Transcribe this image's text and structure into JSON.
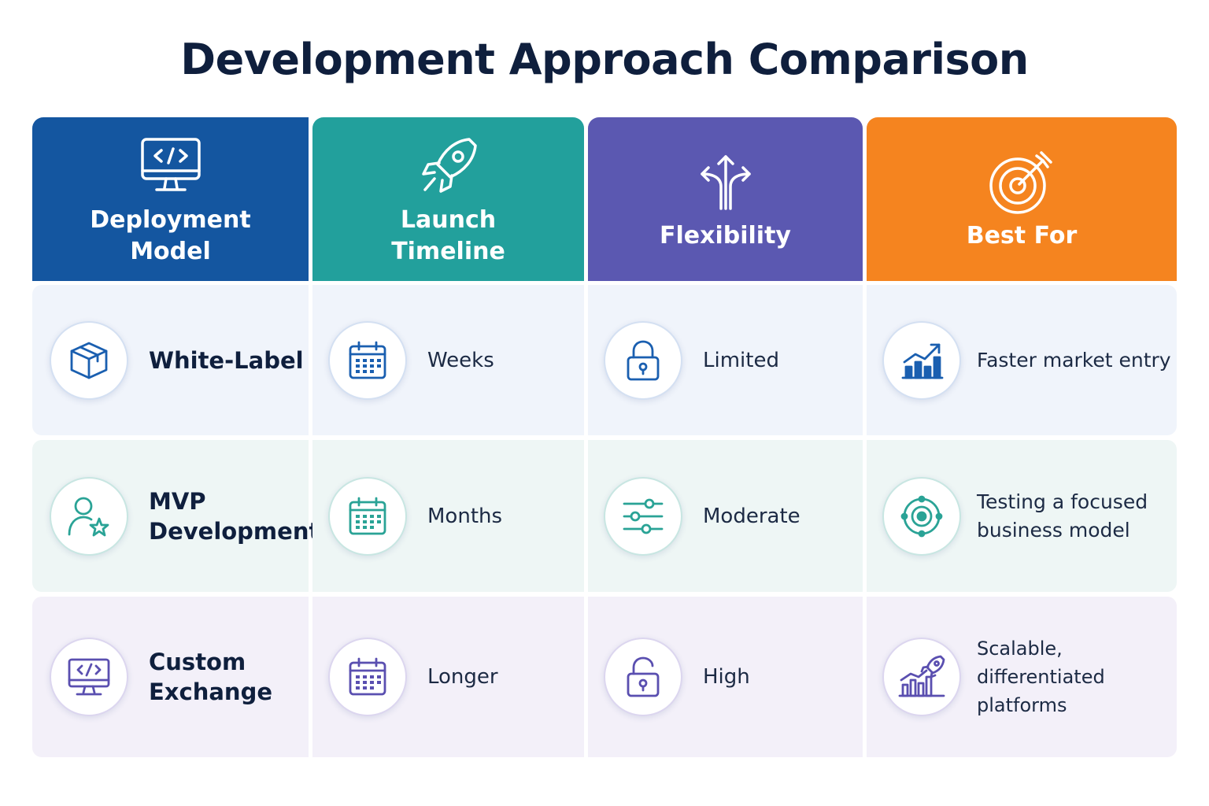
{
  "title": "Development Approach Comparison",
  "colors": {
    "header_deployment": "#1456a0",
    "header_launch": "#22a09c",
    "header_flexibility": "#5b58b1",
    "header_best_for": "#f5841f",
    "icon_blue": "#1a5fb0",
    "icon_teal": "#2aa396",
    "icon_purple": "#5a4fb0"
  },
  "headers": [
    {
      "label": "Deployment\nModel",
      "icon": "monitor-code-icon"
    },
    {
      "label": "Launch\nTimeline",
      "icon": "rocket-icon"
    },
    {
      "label": "Flexibility",
      "icon": "split-arrows-icon"
    },
    {
      "label": "Best For",
      "icon": "target-arrow-icon"
    }
  ],
  "rows": [
    {
      "model": {
        "label": "White-Label",
        "icon": "box-icon"
      },
      "timeline": {
        "label": "Weeks",
        "icon": "calendar-icon"
      },
      "flexibility": {
        "label": "Limited",
        "icon": "lock-icon"
      },
      "best_for": {
        "label": "Faster market entry",
        "icon": "chart-growth-icon"
      }
    },
    {
      "model": {
        "label": "MVP\nDevelopment",
        "icon": "user-star-icon"
      },
      "timeline": {
        "label": "Months",
        "icon": "calendar-icon"
      },
      "flexibility": {
        "label": "Moderate",
        "icon": "sliders-icon"
      },
      "best_for": {
        "label": "Testing a focused\nbusiness model",
        "icon": "target-cycle-icon"
      }
    },
    {
      "model": {
        "label": "Custom\nExchange",
        "icon": "monitor-code-icon"
      },
      "timeline": {
        "label": "Longer",
        "icon": "calendar-icon"
      },
      "flexibility": {
        "label": "High",
        "icon": "unlock-icon"
      },
      "best_for": {
        "label": "Scalable, differentiated\nplatforms",
        "icon": "chart-rocket-icon"
      }
    }
  ]
}
